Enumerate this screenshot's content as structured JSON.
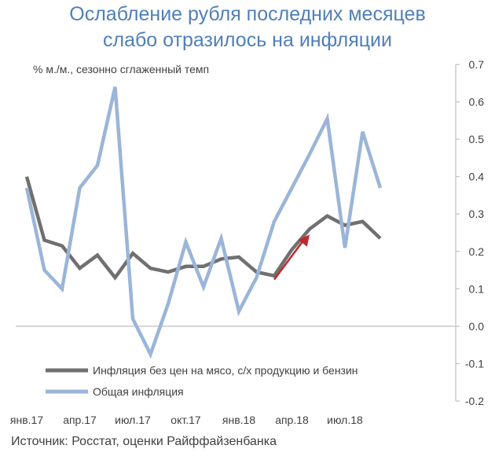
{
  "title_line1": "Ослабление рубля последних месяцев",
  "title_line2": "слабо отразилось на инфляции",
  "units_label": "% м./м., сезонно сглаженный темп",
  "source": "Источник:  Росстат, оценки Райффайзенбанка",
  "chart_data": {
    "type": "line",
    "title": "Ослабление рубля последних месяцев слабо отразилось на инфляции",
    "ylabel": "% м./м., сезонно сглаженный темп",
    "ylim": [
      -0.2,
      0.7
    ],
    "y_axis_side": "right",
    "y_ticks": [
      "0.7",
      "0.6",
      "0.5",
      "0.4",
      "0.3",
      "0.2",
      "0.1",
      "0.0",
      "-0.1",
      "-0.2"
    ],
    "x_tick_labels": [
      "янв.17",
      "апр.17",
      "июл.17",
      "окт.17",
      "янв.18",
      "апр.18",
      "июл.18"
    ],
    "categories": [
      "янв.17",
      "фев.17",
      "мар.17",
      "апр.17",
      "май.17",
      "июн.17",
      "июл.17",
      "авг.17",
      "сен.17",
      "окт.17",
      "ноя.17",
      "дек.17",
      "янв.18",
      "фев.18",
      "мар.18",
      "апр.18",
      "май.18",
      "июн.18",
      "июл.18",
      "авг.18",
      "сен.18"
    ],
    "series": [
      {
        "name": "Инфляция без цен на мясо, с/х продукцию и бензин",
        "color": "#707070",
        "values": [
          0.4,
          0.23,
          0.215,
          0.155,
          0.19,
          0.13,
          0.195,
          0.155,
          0.145,
          0.16,
          0.16,
          0.18,
          0.185,
          0.145,
          0.135,
          0.205,
          0.26,
          0.295,
          0.27,
          0.28,
          0.235
        ]
      },
      {
        "name": "Общая инфляция",
        "color": "#9bb5d8",
        "values": [
          0.37,
          0.15,
          0.1,
          0.37,
          0.43,
          0.64,
          0.02,
          -0.075,
          0.06,
          0.225,
          0.105,
          0.235,
          0.04,
          0.13,
          0.28,
          0.37,
          0.46,
          0.555,
          0.21,
          0.52,
          0.37
        ]
      }
    ],
    "annotation": {
      "type": "arrow",
      "color": "#c0282d",
      "from": [
        "мар.18",
        0.125
      ],
      "to": [
        "май.18",
        0.245
      ]
    },
    "legend_placement": "bottom-left"
  }
}
